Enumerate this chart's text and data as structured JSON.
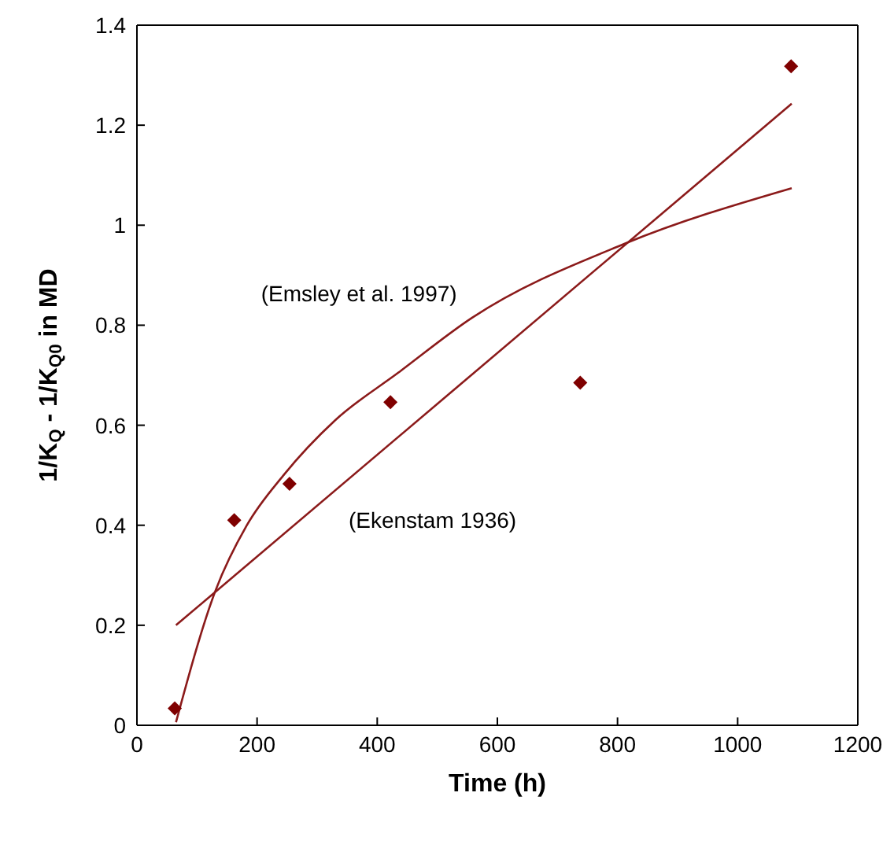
{
  "chart_data": {
    "type": "scatter",
    "xlabel": "Time (h)",
    "ylabel": "1/K$_{Q}$ - 1/K$_{Q0}$ in MD",
    "xlim": [
      0,
      1200
    ],
    "xticks": [
      0,
      200,
      400,
      600,
      800,
      1000,
      1200
    ],
    "ylim": [
      0,
      1.4
    ],
    "yticks": [
      0,
      0.2,
      0.4,
      0.6,
      0.8,
      1,
      1.2,
      1.4
    ],
    "grid": false,
    "series": [
      {
        "marker": "diamond",
        "color": "#7f0000",
        "x": [
          63,
          162,
          254,
          422,
          738,
          1089
        ],
        "values": [
          0.034,
          0.41,
          0.483,
          0.646,
          0.685,
          1.318
        ]
      },
      {
        "type": "line",
        "marker": "none",
        "line_style": "solid",
        "color": "#8b1a1a",
        "x": [
          65,
          131,
          183,
          244,
          330,
          435,
          558,
          812,
          1090
        ],
        "values": [
          0.006,
          0.27,
          0.4,
          0.5,
          0.61,
          0.705,
          0.815,
          0.963,
          1.074
        ]
      },
      {
        "type": "line",
        "marker": "none",
        "line_style": "solid",
        "color": "#8b1a1a",
        "x": [
          65,
          1090
        ],
        "values": [
          0.2,
          1.243
        ]
      }
    ],
    "annotations": [
      "(Emsley et al. 1997)",
      "(Ekenstam 1936)"
    ]
  }
}
